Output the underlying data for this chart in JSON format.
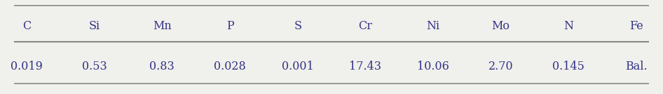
{
  "headers": [
    "C",
    "Si",
    "Mn",
    "P",
    "S",
    "Cr",
    "Ni",
    "Mo",
    "N",
    "Fe"
  ],
  "values": [
    "0.019",
    "0.53",
    "0.83",
    "0.028",
    "0.001",
    "17.43",
    "10.06",
    "2.70",
    "0.145",
    "Bal."
  ],
  "text_color": "#333388",
  "line_color": "#888888",
  "bg_color": "#f0f0ec",
  "fontsize": 11.5,
  "fig_width": 9.46,
  "fig_height": 1.35,
  "dpi": 100
}
